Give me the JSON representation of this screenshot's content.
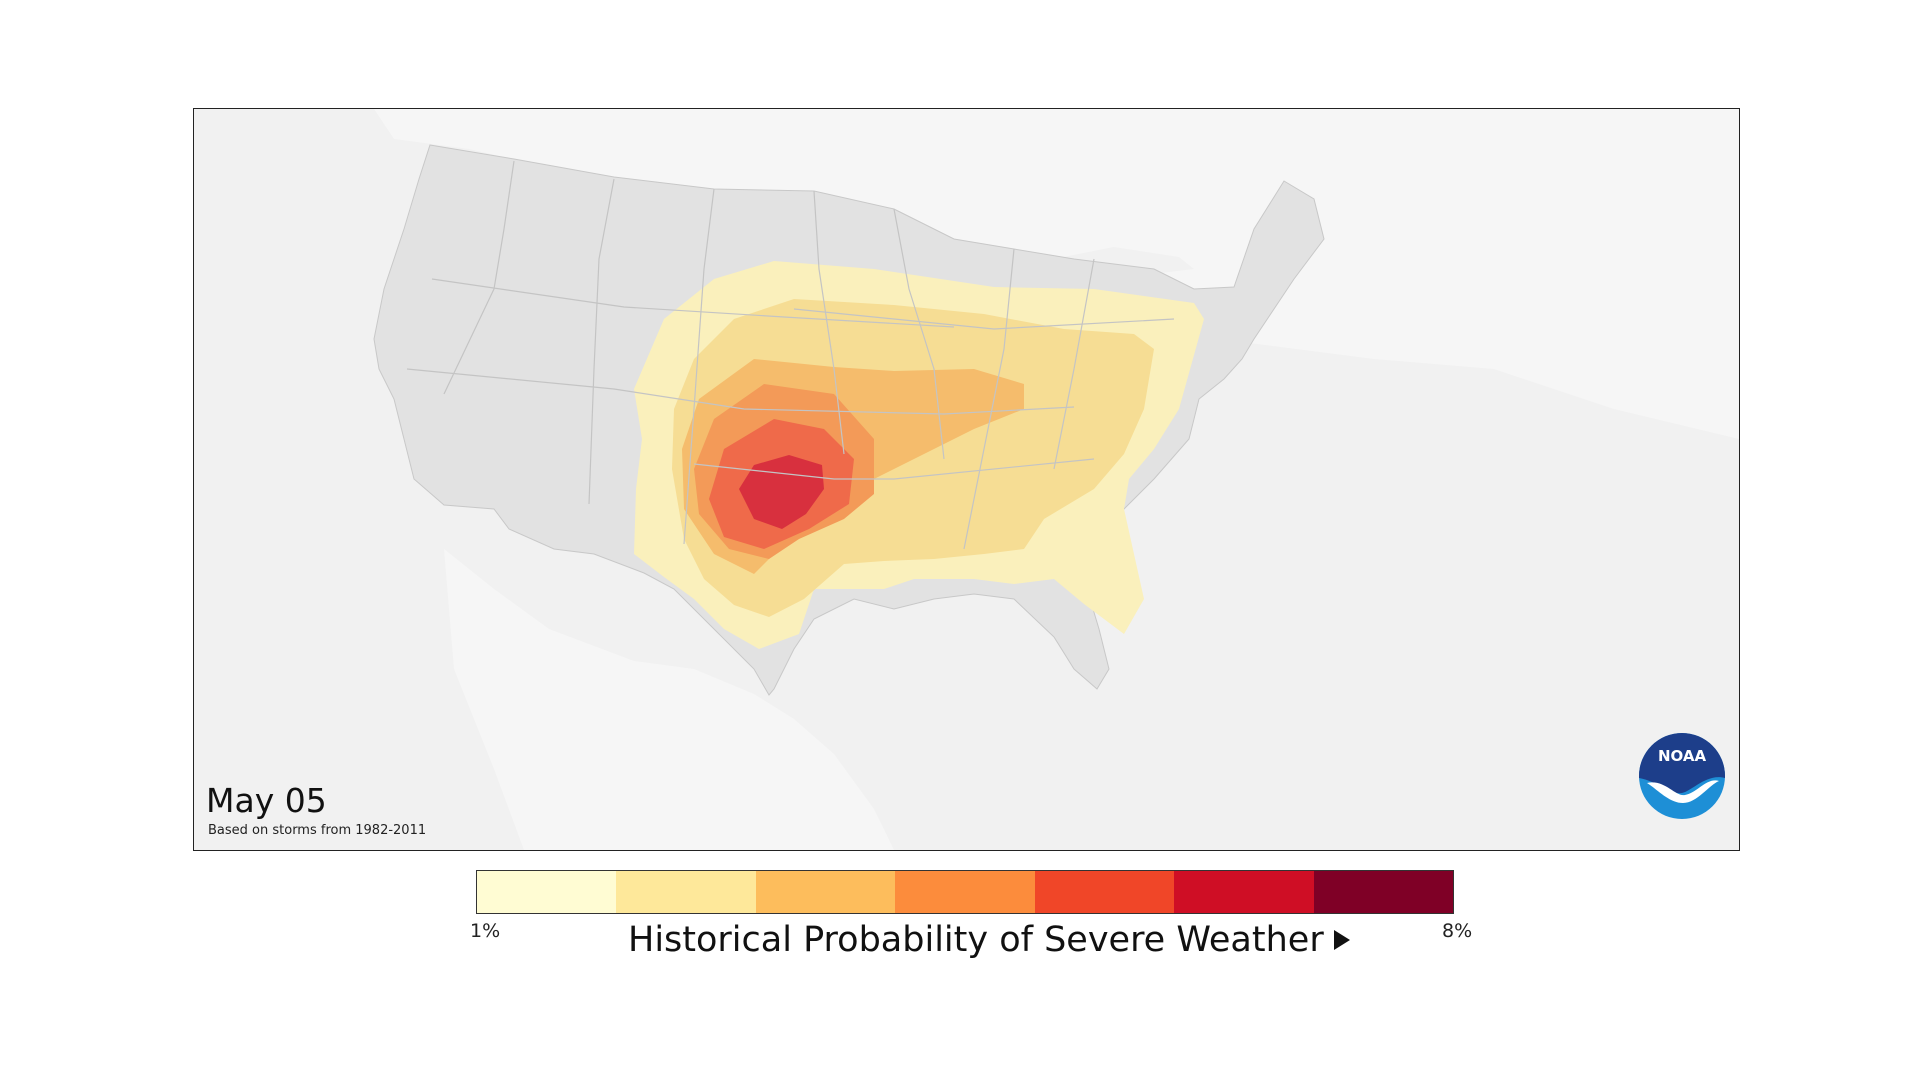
{
  "map": {
    "date": "May 05",
    "basis": "Based on storms from 1982-2011",
    "logo_text": "NOAA",
    "colors": {
      "background": "#f1f1f1",
      "land_other": "#f6f6f6",
      "land_us": "#e2e2e2",
      "borders": "#c4c4c4"
    }
  },
  "legend": {
    "title": "Historical Probability of Severe Weather",
    "min_label": "1%",
    "max_label": "8%",
    "colors": [
      "#fffcd3",
      "#fee89a",
      "#fdbd5c",
      "#fc8c3c",
      "#f04628",
      "#cf0e25",
      "#7f0026"
    ],
    "map_fill_colors": [
      "#faf0bc",
      "#f6dd94",
      "#f5bc6c",
      "#f39a58",
      "#ef6a4a",
      "#d8303e"
    ]
  }
}
